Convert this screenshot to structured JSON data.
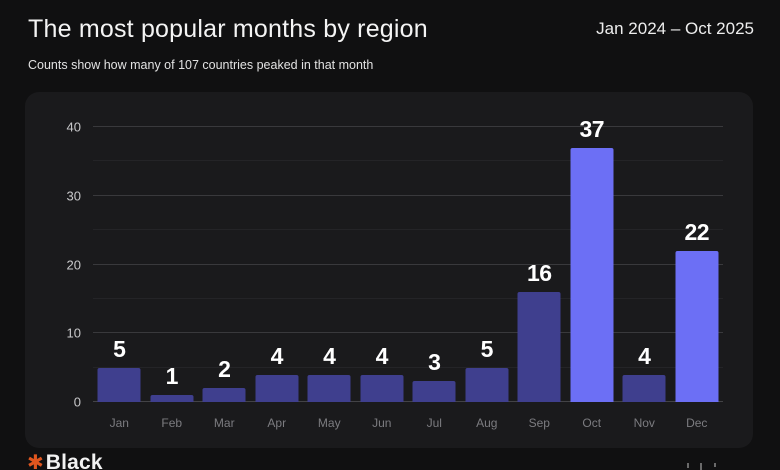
{
  "header": {
    "title": "The most popular months by region",
    "date_range": "Jan 2024 – Oct 2025",
    "subtitle": "Counts show how many of 107 countries peaked in that month"
  },
  "chart_data": {
    "type": "bar",
    "title": "The most popular months by region",
    "categories": [
      "Jan",
      "Feb",
      "Mar",
      "Apr",
      "May",
      "Jun",
      "Jul",
      "Aug",
      "Sep",
      "Oct",
      "Nov",
      "Dec"
    ],
    "values": [
      5,
      1,
      2,
      4,
      4,
      4,
      3,
      5,
      16,
      37,
      4,
      22
    ],
    "highlighted_indices": [
      9,
      11
    ],
    "xlabel": "",
    "ylabel": "",
    "ylim": [
      0,
      40
    ],
    "yticks": [
      0,
      10,
      20,
      30,
      40
    ],
    "gridline_step": 5,
    "grid": true,
    "legend": "none",
    "colors": {
      "bar": "#3f3f8e",
      "bar_highlight": "#6c6ff5",
      "value_label": "#ffffff",
      "background": "#101011",
      "card": "#1a1a1c"
    }
  },
  "footer": {
    "logo_icon": "asterisk-icon",
    "logo_text": "Black"
  }
}
